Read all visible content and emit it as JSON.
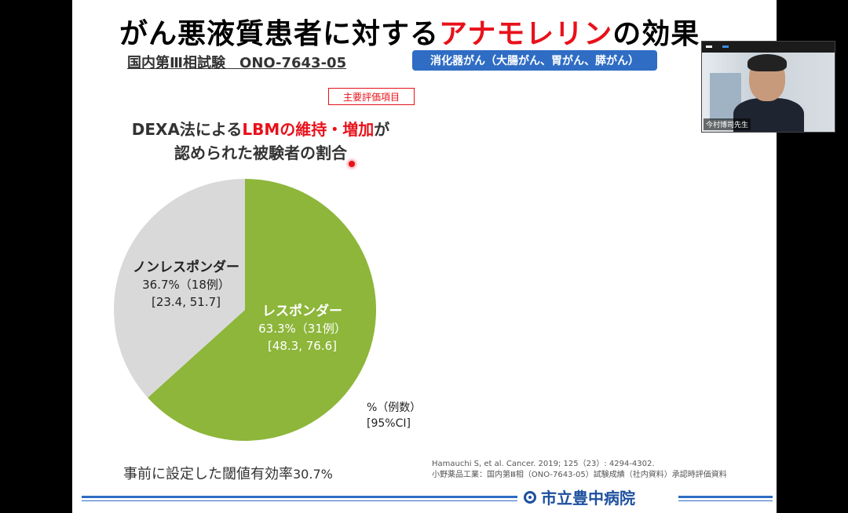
{
  "slide": {
    "title_pre": "がん悪液質患者に対する",
    "title_accent": "アナモレリン",
    "title_post": "の効果",
    "trial": "国内第Ⅲ相試験　ONO-7643-05",
    "badge": "消化器がん（大腸がん、胃がん、膵がん）",
    "endpoint_box": "主要評価項目",
    "heading_line1_pre": "DEXA法による",
    "heading_line1_red": "LBMの維持・増加",
    "heading_line1_post": "が",
    "heading_line2": "認められた被験者の割合",
    "legend_line1": "%（例数）",
    "legend_line2": "[95%CI]",
    "threshold_text": "事前に設定した閾値有効率",
    "threshold_value": "30.7%",
    "ref_line1": "Hamauchi S, et al. Cancer. 2019; 125（23）: 4294-4302.",
    "ref_line2": "小野薬品工業：国内第Ⅲ相（ONO-7643-05）試験成績（社内資料）承認時評価資料",
    "hospital": "市立豊中病院"
  },
  "chart_data": {
    "type": "pie",
    "title": "DEXA法によるLBMの維持・増加が認められた被験者の割合",
    "slices": [
      {
        "name": "レスポンダー",
        "value": 63.3,
        "count_label": "63.3%（31例）",
        "ci_label": "[48.3, 76.6]",
        "color": "#8db63a"
      },
      {
        "name": "ノンレスポンダー",
        "value": 36.7,
        "count_label": "36.7%（18例）",
        "ci_label": "[23.4, 51.7]",
        "color": "#d9d9d9"
      }
    ]
  },
  "video": {
    "name_tag": "今村博司先生"
  }
}
